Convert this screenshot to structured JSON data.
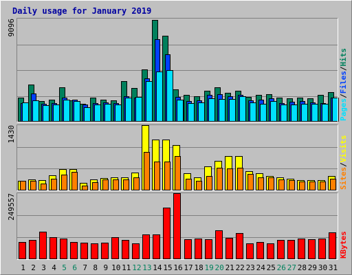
{
  "chart_data": [
    {
      "type": "bar",
      "title": "Daily usage for January 2019",
      "categories": [
        "1",
        "2",
        "3",
        "4",
        "5",
        "6",
        "7",
        "8",
        "9",
        "10",
        "11",
        "12",
        "13",
        "14",
        "15",
        "16",
        "17",
        "18",
        "19",
        "20",
        "21",
        "22",
        "23",
        "24",
        "25",
        "26",
        "27",
        "28",
        "29",
        "30",
        "31"
      ],
      "weekend_days": [
        "5",
        "6",
        "12",
        "13",
        "19",
        "20",
        "26",
        "27"
      ],
      "ymax_label": "9096",
      "ylim": [
        0,
        9096
      ],
      "grid": true,
      "legend": [
        "Pages",
        "/",
        "Files",
        "/",
        "Hits"
      ],
      "series": [
        {
          "name": "Hits",
          "color": "#00805c",
          "values": [
            2150,
            3300,
            1800,
            1950,
            3050,
            1900,
            1550,
            2150,
            1950,
            1850,
            3550,
            2950,
            4600,
            9000,
            7550,
            2850,
            2350,
            2250,
            2750,
            3050,
            2550,
            2750,
            2200,
            2350,
            2450,
            2100,
            2050,
            2150,
            2050,
            2350,
            2600
          ]
        },
        {
          "name": "Files",
          "color": "#0040ff",
          "values": [
            1650,
            2500,
            1600,
            1650,
            2150,
            1950,
            1500,
            1650,
            1700,
            1650,
            2250,
            2100,
            3850,
            7300,
            5950,
            2200,
            1800,
            1900,
            2350,
            2400,
            2250,
            2350,
            1900,
            1950,
            2050,
            1650,
            1750,
            1800,
            1700,
            1650,
            2150
          ]
        },
        {
          "name": "Pages",
          "color": "#00e0ff",
          "values": [
            1700,
            1850,
            1450,
            1500,
            1950,
            1800,
            1300,
            1500,
            1550,
            1500,
            2100,
            2200,
            3600,
            4450,
            4550,
            1950,
            1650,
            1700,
            2050,
            2000,
            2000,
            2250,
            1700,
            1600,
            1800,
            1500,
            1500,
            1550,
            1550,
            1550,
            2100
          ]
        }
      ]
    },
    {
      "type": "bar",
      "ymax_label": "1430",
      "ylim": [
        0,
        1430
      ],
      "grid": true,
      "legend": [
        "Sites",
        "/",
        "Visits"
      ],
      "series": [
        {
          "name": "Visits",
          "color": "#ffff00",
          "values": [
            210,
            240,
            230,
            330,
            470,
            470,
            160,
            240,
            270,
            280,
            290,
            390,
            1430,
            1110,
            1110,
            1000,
            370,
            290,
            520,
            650,
            760,
            760,
            420,
            370,
            320,
            290,
            260,
            230,
            220,
            230,
            320
          ]
        },
        {
          "name": "Sites",
          "color": "#ff8000",
          "values": [
            210,
            210,
            150,
            250,
            340,
            410,
            110,
            180,
            240,
            240,
            240,
            290,
            840,
            630,
            630,
            750,
            260,
            210,
            320,
            490,
            480,
            500,
            360,
            280,
            280,
            240,
            230,
            200,
            200,
            190,
            260
          ]
        }
      ]
    },
    {
      "type": "bar",
      "ymax_label": "249557",
      "ylim": [
        0,
        249557
      ],
      "grid": true,
      "legend": [
        "KBytes"
      ],
      "series": [
        {
          "name": "KBytes",
          "color": "#ff0000",
          "values": [
            66000,
            72000,
            103000,
            82000,
            79000,
            64000,
            63000,
            61000,
            63000,
            82000,
            73000,
            61000,
            94000,
            94000,
            194000,
            249557,
            76000,
            77000,
            76000,
            109000,
            80000,
            99000,
            61000,
            65000,
            61000,
            74000,
            74000,
            79000,
            76000,
            77000,
            101000
          ]
        }
      ]
    }
  ]
}
